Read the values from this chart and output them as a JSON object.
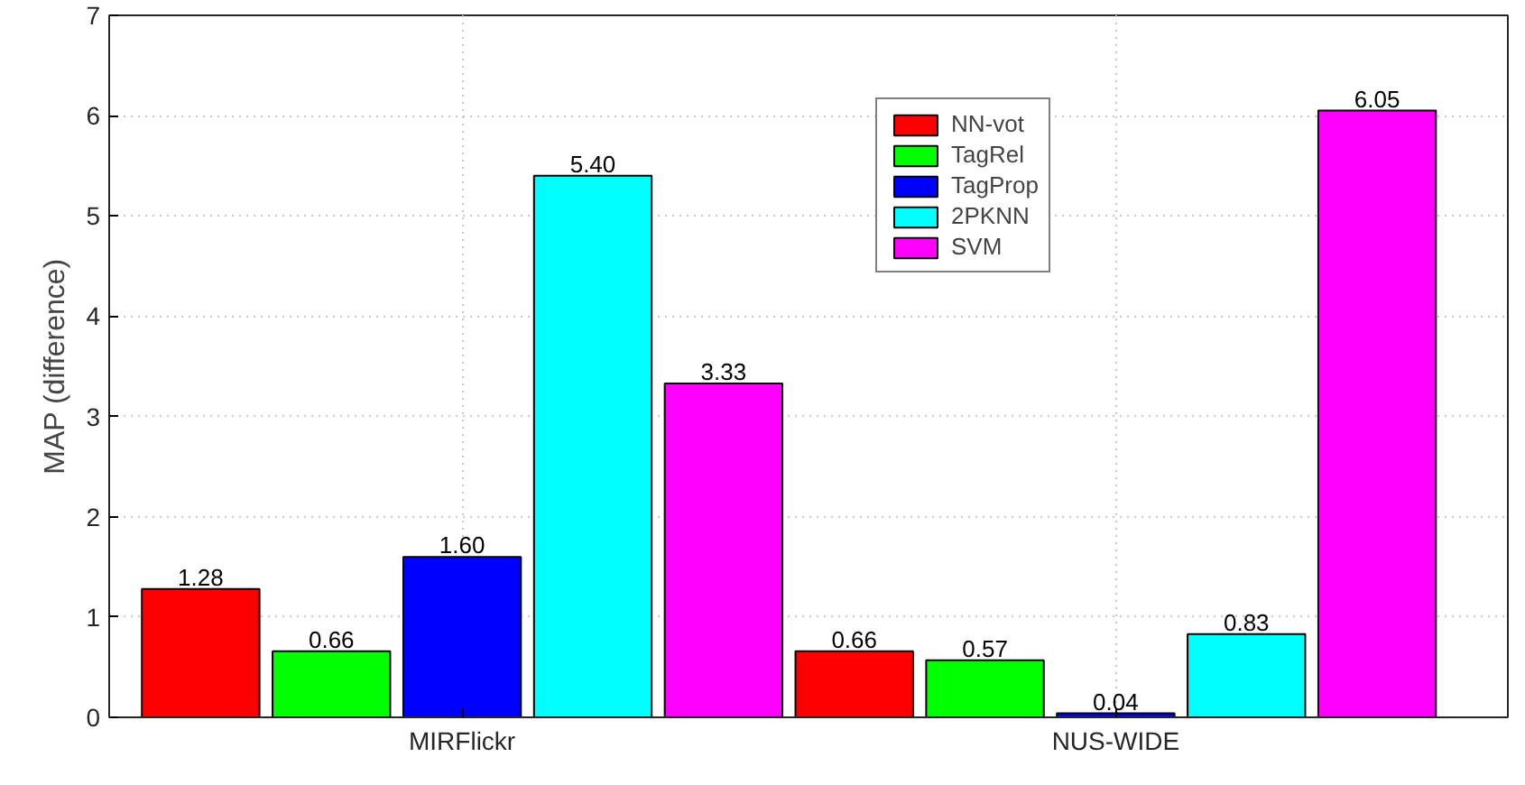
{
  "chart_data": {
    "type": "bar",
    "ylabel": "MAP (difference)",
    "categories": [
      "MIRFlickr",
      "NUS-WIDE"
    ],
    "series": [
      {
        "name": "NN-vot",
        "color": "#ff0000",
        "values": [
          1.28,
          0.66
        ],
        "value_labels": [
          "1.28",
          "0.66"
        ]
      },
      {
        "name": "TagRel",
        "color": "#00ff00",
        "values": [
          0.66,
          0.57
        ],
        "value_labels": [
          "0.66",
          "0.57"
        ]
      },
      {
        "name": "TagProp",
        "color": "#0000ff",
        "values": [
          1.6,
          0.04
        ],
        "value_labels": [
          "1.60",
          "0.04"
        ]
      },
      {
        "name": "2PKNN",
        "color": "#00ffff",
        "values": [
          5.4,
          0.83
        ],
        "value_labels": [
          "5.40",
          "0.83"
        ]
      },
      {
        "name": "SVM",
        "color": "#ff00ff",
        "values": [
          3.33,
          6.05
        ],
        "value_labels": [
          "3.33",
          "6.05"
        ]
      }
    ],
    "ylim": [
      0,
      7
    ],
    "yticks": [
      0,
      1,
      2,
      3,
      4,
      5,
      6,
      7
    ],
    "grid": true,
    "legend": "top right"
  }
}
